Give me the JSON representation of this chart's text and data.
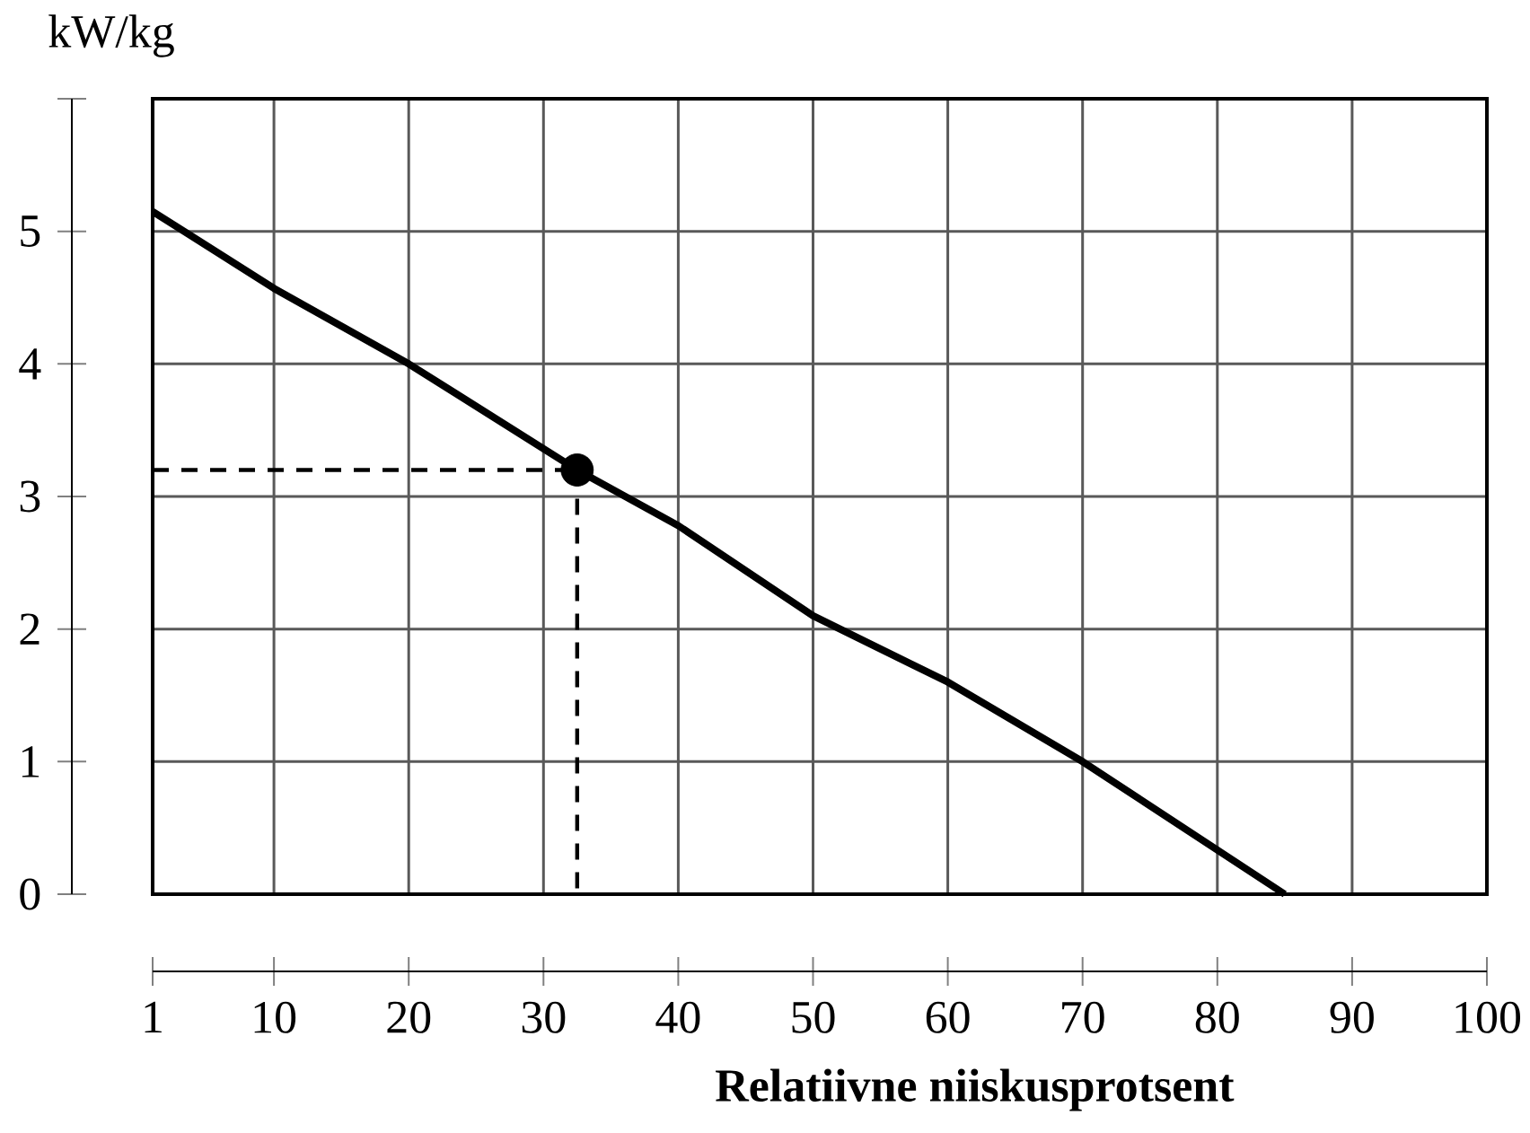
{
  "chart_data": {
    "type": "line",
    "xlabel": "Relatiivne niiskusprotsent",
    "ylabel": "kW/kg",
    "xlim": [
      1,
      100
    ],
    "ylim": [
      0,
      6
    ],
    "xticks": [
      1,
      10,
      20,
      30,
      40,
      50,
      60,
      70,
      80,
      90,
      100
    ],
    "yticks": [
      0,
      1,
      2,
      3,
      4,
      5,
      {
        "value": 6,
        "label": null
      }
    ],
    "grid": true,
    "series": [
      {
        "color": "#000000",
        "line_style": "dashed",
        "x": [
          1,
          32.5
        ],
        "values": [
          3.2,
          3.2
        ]
      },
      {
        "color": "#000000",
        "line_style": "dashed",
        "x": [
          32.5,
          32.5
        ],
        "values": [
          3.2,
          0
        ]
      },
      {
        "color": "#000000",
        "line_style": "solid",
        "x": [
          1,
          10,
          20,
          32.5,
          40,
          50,
          60,
          70,
          85
        ],
        "values": [
          5.15,
          4.57,
          4.0,
          3.2,
          2.78,
          2.1,
          1.6,
          1.0,
          0
        ]
      },
      {
        "type": "scatter",
        "color": "#000000",
        "marker": "circle",
        "x": [
          32.5
        ],
        "values": [
          3.2
        ]
      }
    ]
  }
}
